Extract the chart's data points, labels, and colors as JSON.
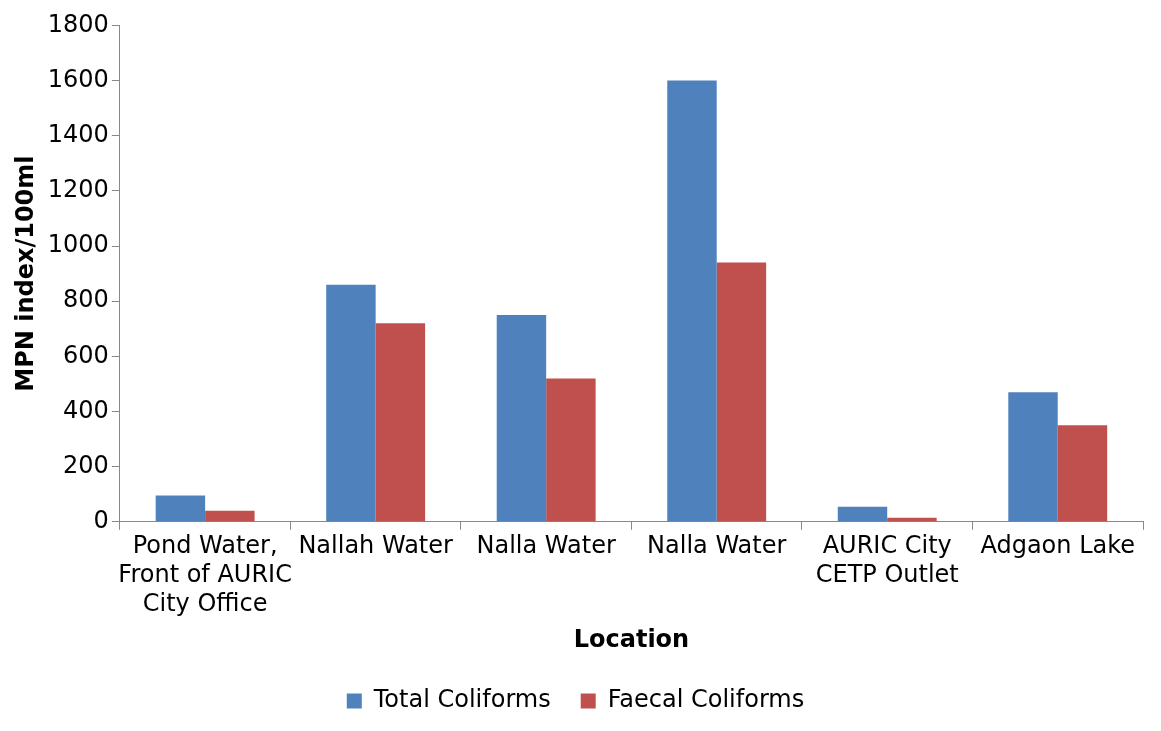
{
  "chart_data": {
    "type": "bar",
    "xlabel": "Location",
    "ylabel": "MPN index/100ml",
    "categories": [
      "Pond Water, Front of AURIC City Office",
      "Nallah Water",
      "Nalla Water",
      "Nalla Water",
      "AURIC City CETP Outlet",
      "Adgaon Lake"
    ],
    "series": [
      {
        "name": "Total Coliforms",
        "color": "#4f81bd",
        "values": [
          95,
          860,
          750,
          1600,
          55,
          470
        ]
      },
      {
        "name": "Faecal Coliforms",
        "color": "#c0504d",
        "values": [
          40,
          720,
          520,
          940,
          15,
          350
        ]
      }
    ],
    "ylim": [
      0,
      1800
    ],
    "yticks": [
      0,
      200,
      400,
      600,
      800,
      1000,
      1200,
      1400,
      1600,
      1800
    ],
    "grid": false,
    "legend": "bottom"
  }
}
